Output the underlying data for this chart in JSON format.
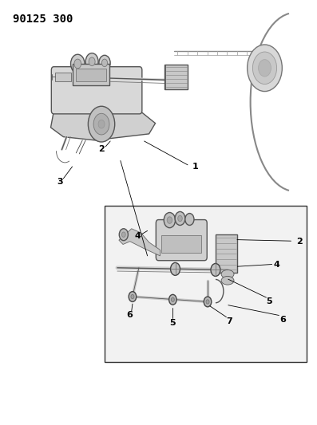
{
  "title_code": "90125 300",
  "background_color": "#ffffff",
  "line_color": "#000000",
  "fig_width": 3.97,
  "fig_height": 5.33,
  "dpi": 100
}
